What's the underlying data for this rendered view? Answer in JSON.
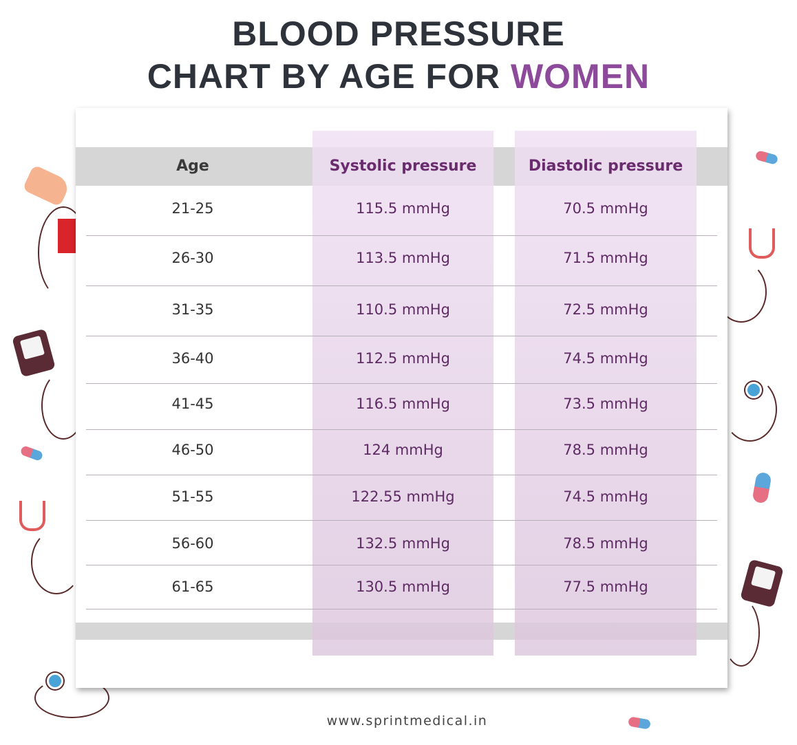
{
  "title": {
    "line1": "BLOOD PRESSURE",
    "line2_prefix": "CHART BY AGE FOR ",
    "line2_accent": "WOMEN"
  },
  "colors": {
    "title": "#2e333b",
    "accent": "#8e4a9a",
    "column_tint": "#e8d4ea",
    "header_bg": "#d6d6d6"
  },
  "table": {
    "headers": [
      "Age",
      "Systolic pressure",
      "Diastolic pressure"
    ],
    "rows": [
      {
        "age": "21-25",
        "systolic": "115.5 mmHg",
        "diastolic": "70.5 mmHg"
      },
      {
        "age": "26-30",
        "systolic": "113.5 mmHg",
        "diastolic": "71.5 mmHg"
      },
      {
        "age": "31-35",
        "systolic": "110.5 mmHg",
        "diastolic": "72.5 mmHg"
      },
      {
        "age": "36-40",
        "systolic": "112.5 mmHg",
        "diastolic": "74.5 mmHg"
      },
      {
        "age": "41-45",
        "systolic": "116.5 mmHg",
        "diastolic": "73.5 mmHg"
      },
      {
        "age": "46-50",
        "systolic": "124 mmHg",
        "diastolic": "78.5 mmHg"
      },
      {
        "age": "51-55",
        "systolic": "122.55 mmHg",
        "diastolic": "74.5 mmHg"
      },
      {
        "age": "56-60",
        "systolic": "132.5 mmHg",
        "diastolic": "78.5 mmHg"
      },
      {
        "age": "61-65",
        "systolic": "130.5 mmHg",
        "diastolic": "77.5 mmHg"
      }
    ]
  },
  "footer": {
    "url": "www.sprintmedical.in"
  },
  "decorations": [
    "hand-bp-cuff-icon",
    "stethoscope-icon",
    "bp-monitor-icon",
    "pill-icon"
  ]
}
